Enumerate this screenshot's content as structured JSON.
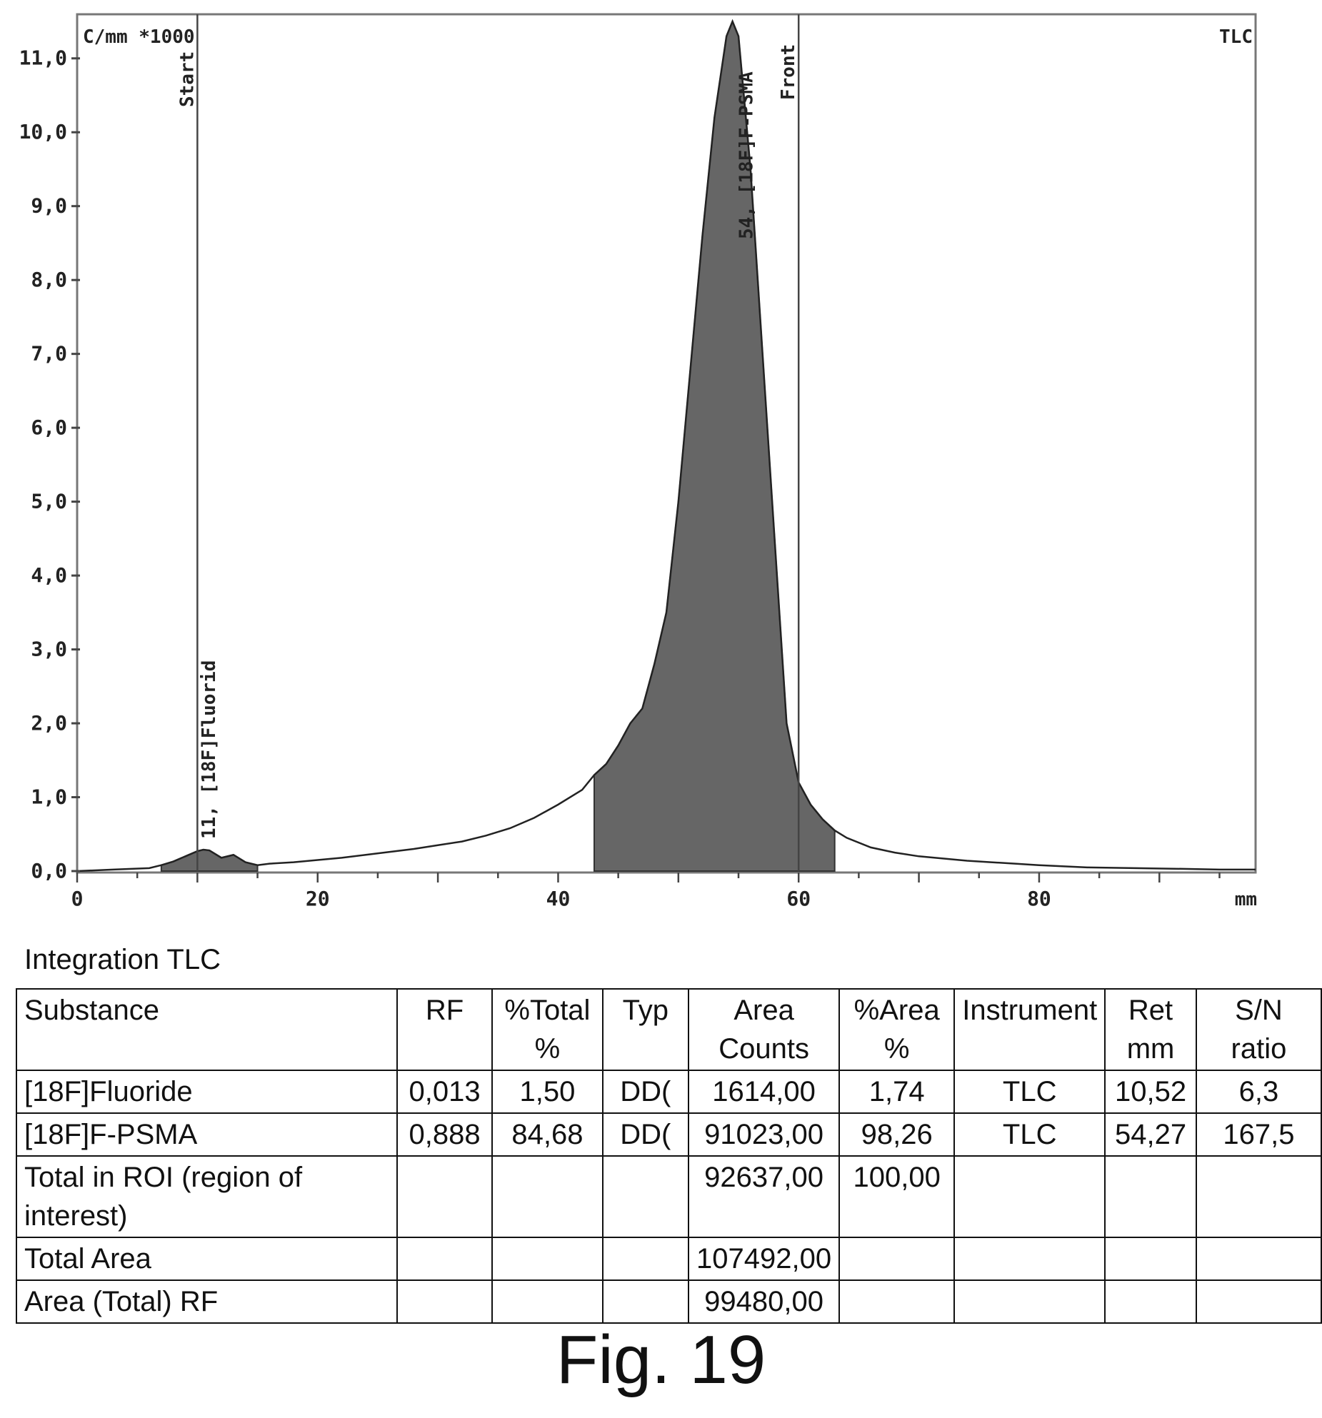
{
  "chart_data": {
    "type": "line",
    "y_unit_label": "C/mm *1000",
    "corner_label": "TLC",
    "x_unit_label": "mm",
    "xlim": [
      0,
      98
    ],
    "ylim": [
      0,
      11.5
    ],
    "x_ticks": [
      "0",
      "20",
      "40",
      "60",
      "80"
    ],
    "x_tick_values": [
      0,
      20,
      40,
      60,
      80
    ],
    "y_ticks": [
      "0,0",
      "1,0",
      "2,0",
      "3,0",
      "4,0",
      "5,0",
      "6,0",
      "7,0",
      "8,0",
      "9,0",
      "10,0",
      "11,0"
    ],
    "y_tick_values": [
      0,
      1,
      2,
      3,
      4,
      5,
      6,
      7,
      8,
      9,
      10,
      11
    ],
    "markers": [
      {
        "label": "Start",
        "x": 10
      },
      {
        "label": "Front",
        "x": 60
      }
    ],
    "peak_labels": [
      {
        "label": "11, [18F]Fluorid",
        "x": 11
      },
      {
        "label": "54, [18F]F-PSMA",
        "x": 57
      }
    ],
    "regions": [
      {
        "name": "[18F]Fluorid",
        "x_start": 7,
        "x_end": 15
      },
      {
        "name": "[18F]F-PSMA",
        "x_start": 43,
        "x_end": 63
      }
    ],
    "series": [
      {
        "x": [
          0,
          3,
          6,
          7,
          8,
          9,
          10,
          10.5,
          11,
          12,
          13,
          14,
          15,
          16,
          18,
          20,
          22,
          24,
          26,
          28,
          30,
          32,
          34,
          36,
          38,
          40,
          42,
          43,
          44,
          45,
          46,
          47,
          48,
          49,
          50,
          51,
          52,
          53,
          54,
          54.5,
          55,
          56,
          57,
          58,
          59,
          60,
          61,
          62,
          63,
          64,
          66,
          68,
          70,
          72,
          74,
          76,
          78,
          80,
          84,
          88,
          92,
          95,
          98
        ],
        "y": [
          0.0,
          0.02,
          0.04,
          0.08,
          0.13,
          0.2,
          0.27,
          0.29,
          0.28,
          0.18,
          0.22,
          0.12,
          0.08,
          0.1,
          0.12,
          0.15,
          0.18,
          0.22,
          0.26,
          0.3,
          0.35,
          0.4,
          0.48,
          0.58,
          0.72,
          0.9,
          1.1,
          1.3,
          1.45,
          1.7,
          2.0,
          2.2,
          2.8,
          3.5,
          5.0,
          6.8,
          8.6,
          10.2,
          11.3,
          11.5,
          11.3,
          9.5,
          7.0,
          4.5,
          2.0,
          1.2,
          0.9,
          0.7,
          0.55,
          0.45,
          0.32,
          0.25,
          0.2,
          0.17,
          0.14,
          0.12,
          0.1,
          0.08,
          0.05,
          0.04,
          0.03,
          0.02,
          0.02
        ]
      }
    ]
  },
  "table": {
    "caption": "Integration TLC",
    "headers": {
      "substance": "Substance",
      "rf": "RF",
      "total_pct_1": "%Total",
      "total_pct_2": "%",
      "typ": "Typ",
      "area_1": "Area",
      "area_2": "Counts",
      "area_pct_1": "%Area",
      "area_pct_2": "%",
      "instrument": "Instrument",
      "ret_1": "Ret",
      "ret_2": "mm",
      "sn": "S/N ratio"
    },
    "rows": [
      {
        "substance": "[18F]Fluoride",
        "rf": "0,013",
        "total_pct": "1,50",
        "typ": "DD(",
        "area_counts": "1614,00",
        "area_pct": "1,74",
        "instrument": "TLC",
        "ret_mm": "10,52",
        "sn": "6,3"
      },
      {
        "substance": "[18F]F-PSMA",
        "rf": "0,888",
        "total_pct": "84,68",
        "typ": "DD(",
        "area_counts": "91023,00",
        "area_pct": "98,26",
        "instrument": "TLC",
        "ret_mm": "54,27",
        "sn": "167,5"
      },
      {
        "substance": "Total in ROI (region of interest)",
        "rf": "",
        "total_pct": "",
        "typ": "",
        "area_counts": "92637,00",
        "area_pct": "100,00",
        "instrument": "",
        "ret_mm": "",
        "sn": ""
      },
      {
        "substance": "Total Area",
        "rf": "",
        "total_pct": "",
        "typ": "",
        "area_counts": "107492,00",
        "area_pct": "",
        "instrument": "",
        "ret_mm": "",
        "sn": ""
      },
      {
        "substance": "Area (Total) RF",
        "rf": "",
        "total_pct": "",
        "typ": "",
        "area_counts": "99480,00",
        "area_pct": "",
        "instrument": "",
        "ret_mm": "",
        "sn": ""
      }
    ]
  },
  "figure_label": "Fig. 19",
  "colors": {
    "fill": "#666666",
    "line": "#222222",
    "axis": "#777777"
  }
}
